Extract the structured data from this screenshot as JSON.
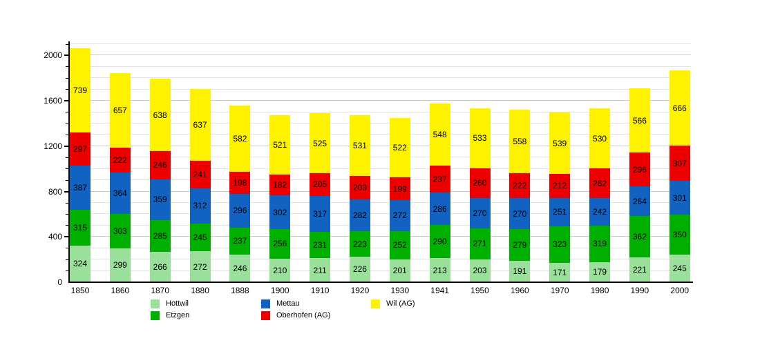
{
  "chart_data": {
    "type": "bar",
    "stacked": true,
    "title": "",
    "xlabel": "",
    "ylabel": "",
    "categories": [
      "1850",
      "1860",
      "1870",
      "1880",
      "1888",
      "1900",
      "1910",
      "1920",
      "1930",
      "1941",
      "1950",
      "1960",
      "1970",
      "1980",
      "1990",
      "2000"
    ],
    "series": [
      {
        "name": "Hottwil",
        "color": "#9ADF9A",
        "values": [
          324,
          299,
          266,
          272,
          246,
          210,
          211,
          226,
          201,
          213,
          203,
          191,
          171,
          179,
          221,
          245
        ]
      },
      {
        "name": "Etzgen",
        "color": "#00B000",
        "values": [
          315,
          303,
          285,
          245,
          237,
          256,
          231,
          223,
          252,
          290,
          271,
          279,
          323,
          319,
          362,
          350
        ]
      },
      {
        "name": "Mettau",
        "color": "#1262C2",
        "values": [
          387,
          364,
          359,
          312,
          296,
          302,
          317,
          282,
          272,
          286,
          270,
          270,
          251,
          242,
          264,
          301
        ]
      },
      {
        "name": "Oberhofen (AG)",
        "color": "#EE0000",
        "values": [
          297,
          222,
          246,
          241,
          198,
          182,
          205,
          209,
          199,
          237,
          260,
          222,
          212,
          262,
          296,
          307
        ]
      },
      {
        "name": "Wil (AG)",
        "color": "#FFF200",
        "values": [
          739,
          657,
          638,
          637,
          582,
          521,
          525,
          531,
          522,
          548,
          533,
          558,
          539,
          530,
          566,
          666
        ]
      }
    ],
    "ylim": [
      0,
      2100
    ],
    "ytick_minor_step": 100,
    "ytick_labels": [
      0,
      400,
      800,
      1200,
      1600,
      2000
    ],
    "grid": true,
    "value_labels": "centered-in-segment",
    "legend_position": "bottom"
  },
  "style_colors": {
    "grid_minor": "#e2e2e2",
    "grid_major": "#c8c8c8",
    "axis": "#000000",
    "background": "#ffffff",
    "text": "#000000"
  }
}
